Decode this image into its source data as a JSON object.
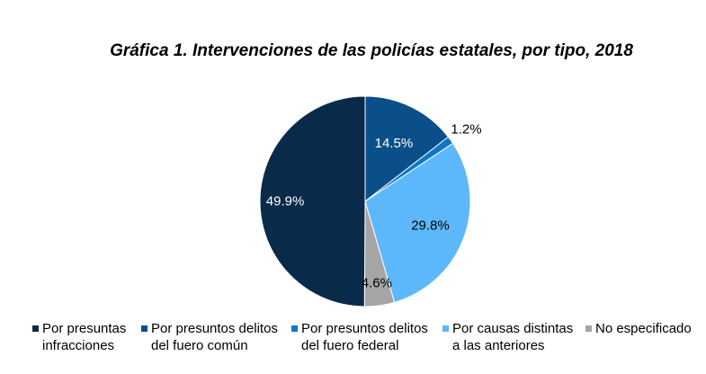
{
  "chart_data": {
    "type": "pie",
    "title": "Gráfica 1. Intervenciones de las policías estatales, por tipo, 2018",
    "unit": "%",
    "slices": [
      {
        "name": "Por presuntas infracciones",
        "legend_lines": [
          "Por presuntas",
          "infracciones"
        ],
        "value": 49.9,
        "label": "49.9%",
        "color": "#0a2a4a",
        "label_color": "#ffffff"
      },
      {
        "name": "Por presuntos delitos del fuero común",
        "legend_lines": [
          "Por presuntos delitos",
          "del fuero común"
        ],
        "value": 14.5,
        "label": "14.5%",
        "color": "#0b4f8a",
        "label_color": "#ffffff"
      },
      {
        "name": "Por presuntos delitos del fuero federal",
        "legend_lines": [
          "Por presuntos delitos",
          "del fuero federal"
        ],
        "value": 1.2,
        "label": "1.2%",
        "color": "#0f76c9",
        "label_color": "#000000"
      },
      {
        "name": "Por causas distintas a las anteriores",
        "legend_lines": [
          "Por causas distintas",
          "a las anteriores"
        ],
        "value": 29.8,
        "label": "29.8%",
        "color": "#5cb8fb",
        "label_color": "#000000"
      },
      {
        "name": "No especificado",
        "legend_lines": [
          "No especificado"
        ],
        "value": 4.6,
        "label": "4.6%",
        "color": "#a5a5a5",
        "label_color": "#000000"
      }
    ],
    "legend_position": "bottom"
  }
}
